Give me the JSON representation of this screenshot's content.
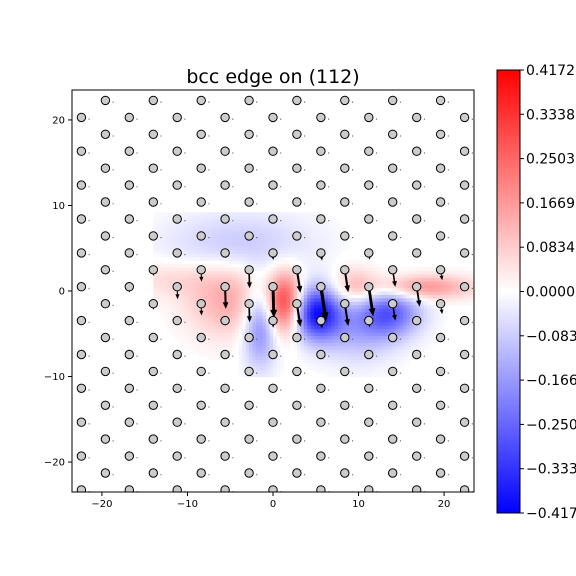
{
  "chart_data": {
    "type": "heatmap",
    "title": "bcc edge on (112)",
    "xlabel": "",
    "ylabel": "",
    "xlim": [
      -23.5,
      23.5
    ],
    "ylim": [
      -23.5,
      23.5
    ],
    "xticks": [
      -20,
      -10,
      0,
      10,
      20
    ],
    "yticks": [
      20,
      10,
      0,
      -10,
      -20
    ],
    "xtick_labels": [
      "−20",
      "−10",
      "0",
      "10",
      "20"
    ],
    "ytick_labels": [
      "20",
      "10",
      "0",
      "−10",
      "−20"
    ],
    "colormap": "bwr",
    "colorbar": {
      "vmin": -0.4172,
      "vmax": 0.4172,
      "ticks": [
        0.4172,
        0.3338,
        0.2503,
        0.1669,
        0.0834,
        0.0,
        -0.0834,
        -0.1669,
        -0.2503,
        -0.3338,
        -0.4172
      ],
      "tick_labels": [
        "0.4172",
        "0.3338",
        "0.2503",
        "0.1669",
        "0.0834",
        "0.0000",
        "−0.0834",
        "−0.1669",
        "−0.2503",
        "−0.3338",
        "−0.4172"
      ]
    },
    "lattice": {
      "description_markers": "atoms",
      "row_spacing": 1.98,
      "a1": [
        5.6,
        0
      ],
      "a2": [
        2.8,
        1.98
      ],
      "marker_fill": "#cccccc",
      "marker_edge": "#000000"
    },
    "field_blobs": [
      {
        "x": 1.5,
        "y": -1.5,
        "amp": 0.35,
        "sx": 1.5,
        "sy": 2.5
      },
      {
        "x": -5.0,
        "y": -1.0,
        "amp": 0.14,
        "sx": 3.5,
        "sy": 3.0
      },
      {
        "x": 9.5,
        "y": 0.5,
        "amp": 0.12,
        "sx": 2.0,
        "sy": 1.6
      },
      {
        "x": 17.5,
        "y": 0.5,
        "amp": 0.18,
        "sx": 4.0,
        "sy": 1.0
      },
      {
        "x": -12.0,
        "y": 1.5,
        "amp": 0.06,
        "sx": 4.0,
        "sy": 1.5
      },
      {
        "x": 5.0,
        "y": -2.5,
        "amp": -0.4,
        "sx": 2.2,
        "sy": 2.2
      },
      {
        "x": -1.5,
        "y": -4.0,
        "amp": -0.22,
        "sx": 1.4,
        "sy": 3.2
      },
      {
        "x": 13.5,
        "y": -2.5,
        "amp": -0.26,
        "sx": 2.6,
        "sy": 2.0
      },
      {
        "x": -4.0,
        "y": 5.5,
        "amp": -0.09,
        "sx": 6.0,
        "sy": 2.6
      },
      {
        "x": 10.0,
        "y": -5.0,
        "amp": -0.1,
        "sx": 3.0,
        "sy": 2.5
      }
    ],
    "displacement_arrows": {
      "color": "#000000",
      "sample": [
        {
          "x": 1.0,
          "y": 2.5,
          "dx": 0.6,
          "dy": -3.2
        },
        {
          "x": 3.0,
          "y": 0.5,
          "dx": 0.3,
          "dy": -3.5
        },
        {
          "x": 5.0,
          "y": 2.5,
          "dx": 0.9,
          "dy": -2.6
        },
        {
          "x": 7.0,
          "y": 0.5,
          "dx": 0.7,
          "dy": -2.6
        },
        {
          "x": 9.5,
          "y": 2.5,
          "dx": 1.6,
          "dy": -2.4
        },
        {
          "x": 13.5,
          "y": 1.5,
          "dx": 1.2,
          "dy": -2.4
        }
      ]
    }
  }
}
